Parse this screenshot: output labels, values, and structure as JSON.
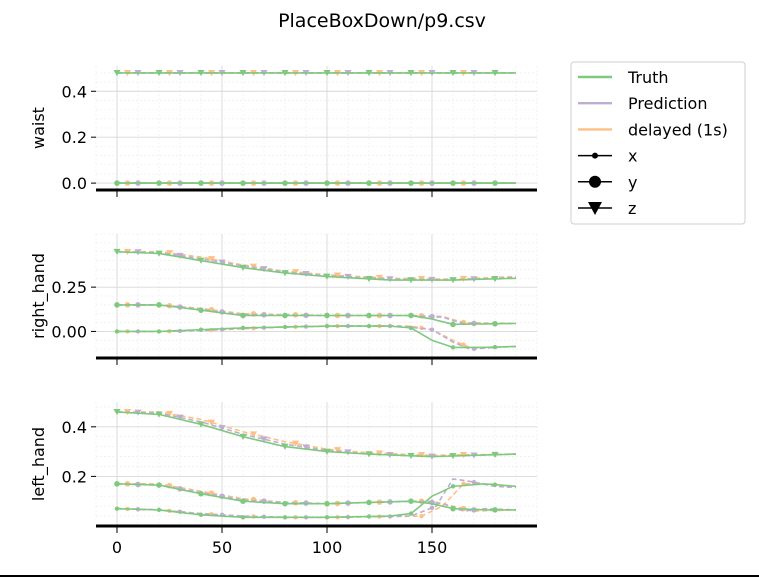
{
  "figure": {
    "title": "PlaceBoxDown/p9.csv"
  },
  "legend": {
    "placement": "right",
    "entries": [
      {
        "label": "Truth",
        "kind": "line",
        "color": "#7fc97f"
      },
      {
        "label": "Prediction",
        "kind": "line",
        "color": "#beaed4"
      },
      {
        "label": "delayed (1s)",
        "kind": "line",
        "color": "#fdc086"
      },
      {
        "label": "x",
        "kind": "marker",
        "marker": "small-dot"
      },
      {
        "label": "y",
        "kind": "marker",
        "marker": "big-dot"
      },
      {
        "label": "z",
        "kind": "marker",
        "marker": "triangle-down"
      }
    ]
  },
  "chart_data": [
    {
      "type": "line",
      "ylabel": "waist",
      "xlim": [
        -10,
        200
      ],
      "ylim": [
        -0.03,
        0.51
      ],
      "yticks": [
        0.0,
        0.2,
        0.4
      ],
      "ytick_labels": [
        "0.0",
        "0.2",
        "0.4"
      ],
      "xticks": [
        0,
        50,
        100,
        150
      ],
      "xtick_labels": [
        "",
        "",
        "",
        ""
      ],
      "grid": true,
      "series": [
        {
          "component": "x",
          "Truth": [
            [
              0,
              0.0
            ],
            [
              190,
              0.0
            ]
          ],
          "Prediction": [
            [
              0,
              0.0
            ],
            [
              190,
              0.0
            ]
          ],
          "delayed (1s)": [
            [
              0,
              0.0
            ],
            [
              190,
              0.0
            ]
          ]
        },
        {
          "component": "y",
          "Truth": [
            [
              0,
              0.0
            ],
            [
              190,
              0.0
            ]
          ],
          "Prediction": [
            [
              0,
              0.0
            ],
            [
              190,
              0.0
            ]
          ],
          "delayed (1s)": [
            [
              0,
              0.0
            ],
            [
              190,
              0.0
            ]
          ]
        },
        {
          "component": "z",
          "Truth": [
            [
              0,
              0.48
            ],
            [
              190,
              0.48
            ]
          ],
          "Prediction": [
            [
              0,
              0.48
            ],
            [
              190,
              0.48
            ]
          ],
          "delayed (1s)": [
            [
              0,
              0.48
            ],
            [
              190,
              0.48
            ]
          ]
        }
      ]
    },
    {
      "type": "line",
      "ylabel": "right_hand",
      "xlim": [
        -10,
        200
      ],
      "ylim": [
        -0.15,
        0.55
      ],
      "yticks": [
        0.0,
        0.25
      ],
      "ytick_labels": [
        "0.00",
        "0.25"
      ],
      "xticks": [
        0,
        50,
        100,
        150
      ],
      "xtick_labels": [
        "",
        "",
        "",
        ""
      ],
      "grid": true,
      "series": [
        {
          "component": "x",
          "Truth": [
            [
              0,
              0.0
            ],
            [
              20,
              0.0
            ],
            [
              40,
              0.01
            ],
            [
              60,
              0.02
            ],
            [
              80,
              0.025
            ],
            [
              100,
              0.03
            ],
            [
              130,
              0.03
            ],
            [
              140,
              0.02
            ],
            [
              150,
              -0.05
            ],
            [
              160,
              -0.09
            ],
            [
              175,
              -0.09
            ],
            [
              190,
              -0.085
            ]
          ],
          "Prediction": [
            [
              0,
              0.0
            ],
            [
              20,
              0.0
            ],
            [
              40,
              0.005
            ],
            [
              60,
              0.018
            ],
            [
              80,
              0.025
            ],
            [
              100,
              0.03
            ],
            [
              135,
              0.03
            ],
            [
              150,
              0.01
            ],
            [
              160,
              -0.06
            ],
            [
              168,
              -0.1
            ],
            [
              180,
              -0.09
            ],
            [
              190,
              -0.085
            ]
          ],
          "delayed (1s)": [
            [
              0,
              0.0
            ],
            [
              20,
              0.0
            ],
            [
              40,
              0.005
            ],
            [
              60,
              0.015
            ],
            [
              80,
              0.025
            ],
            [
              100,
              0.03
            ],
            [
              140,
              0.03
            ],
            [
              150,
              0.01
            ],
            [
              160,
              -0.05
            ],
            [
              168,
              -0.09
            ],
            [
              180,
              -0.09
            ],
            [
              190,
              -0.085
            ]
          ]
        },
        {
          "component": "y",
          "Truth": [
            [
              0,
              0.15
            ],
            [
              20,
              0.15
            ],
            [
              40,
              0.12
            ],
            [
              60,
              0.09
            ],
            [
              100,
              0.09
            ],
            [
              140,
              0.09
            ],
            [
              150,
              0.07
            ],
            [
              160,
              0.04
            ],
            [
              190,
              0.045
            ]
          ],
          "Prediction": [
            [
              0,
              0.15
            ],
            [
              20,
              0.15
            ],
            [
              40,
              0.125
            ],
            [
              60,
              0.095
            ],
            [
              100,
              0.09
            ],
            [
              140,
              0.09
            ],
            [
              155,
              0.08
            ],
            [
              165,
              0.045
            ],
            [
              190,
              0.045
            ]
          ],
          "delayed (1s)": [
            [
              0,
              0.15
            ],
            [
              20,
              0.15
            ],
            [
              40,
              0.13
            ],
            [
              60,
              0.1
            ],
            [
              100,
              0.09
            ],
            [
              140,
              0.09
            ],
            [
              155,
              0.085
            ],
            [
              165,
              0.05
            ],
            [
              190,
              0.045
            ]
          ]
        },
        {
          "component": "z",
          "Truth": [
            [
              0,
              0.45
            ],
            [
              20,
              0.44
            ],
            [
              40,
              0.4
            ],
            [
              60,
              0.36
            ],
            [
              80,
              0.33
            ],
            [
              100,
              0.31
            ],
            [
              130,
              0.29
            ],
            [
              160,
              0.29
            ],
            [
              190,
              0.3
            ]
          ],
          "Prediction": [
            [
              0,
              0.45
            ],
            [
              20,
              0.445
            ],
            [
              40,
              0.41
            ],
            [
              60,
              0.37
            ],
            [
              80,
              0.335
            ],
            [
              100,
              0.315
            ],
            [
              130,
              0.295
            ],
            [
              160,
              0.29
            ],
            [
              190,
              0.305
            ]
          ],
          "delayed (1s)": [
            [
              0,
              0.45
            ],
            [
              20,
              0.45
            ],
            [
              40,
              0.42
            ],
            [
              60,
              0.375
            ],
            [
              80,
              0.34
            ],
            [
              100,
              0.32
            ],
            [
              130,
              0.3
            ],
            [
              160,
              0.295
            ],
            [
              190,
              0.31
            ]
          ]
        }
      ]
    },
    {
      "type": "line",
      "ylabel": "left_hand",
      "xlim": [
        -10,
        200
      ],
      "ylim": [
        0.0,
        0.5
      ],
      "yticks": [
        0.2,
        0.4
      ],
      "ytick_labels": [
        "0.2",
        "0.4"
      ],
      "xticks": [
        0,
        50,
        100,
        150
      ],
      "xtick_labels": [
        "0",
        "50",
        "100",
        "150"
      ],
      "grid": true,
      "series": [
        {
          "component": "x",
          "Truth": [
            [
              0,
              0.07
            ],
            [
              20,
              0.065
            ],
            [
              40,
              0.045
            ],
            [
              60,
              0.035
            ],
            [
              80,
              0.035
            ],
            [
              100,
              0.035
            ],
            [
              130,
              0.04
            ],
            [
              140,
              0.05
            ],
            [
              150,
              0.12
            ],
            [
              160,
              0.16
            ],
            [
              175,
              0.17
            ],
            [
              190,
              0.16
            ]
          ],
          "Prediction": [
            [
              0,
              0.07
            ],
            [
              20,
              0.065
            ],
            [
              40,
              0.05
            ],
            [
              60,
              0.04
            ],
            [
              80,
              0.035
            ],
            [
              100,
              0.035
            ],
            [
              140,
              0.04
            ],
            [
              152,
              0.08
            ],
            [
              160,
              0.19
            ],
            [
              168,
              0.18
            ],
            [
              180,
              0.16
            ],
            [
              190,
              0.155
            ]
          ],
          "delayed (1s)": [
            [
              0,
              0.07
            ],
            [
              20,
              0.065
            ],
            [
              40,
              0.05
            ],
            [
              60,
              0.04
            ],
            [
              80,
              0.035
            ],
            [
              100,
              0.035
            ],
            [
              145,
              0.04
            ],
            [
              155,
              0.08
            ],
            [
              165,
              0.17
            ],
            [
              175,
              0.17
            ],
            [
              190,
              0.16
            ]
          ]
        },
        {
          "component": "y",
          "Truth": [
            [
              0,
              0.17
            ],
            [
              20,
              0.165
            ],
            [
              40,
              0.13
            ],
            [
              60,
              0.1
            ],
            [
              80,
              0.09
            ],
            [
              100,
              0.09
            ],
            [
              120,
              0.095
            ],
            [
              140,
              0.1
            ],
            [
              150,
              0.09
            ],
            [
              160,
              0.07
            ],
            [
              175,
              0.065
            ],
            [
              190,
              0.065
            ]
          ],
          "Prediction": [
            [
              0,
              0.17
            ],
            [
              20,
              0.165
            ],
            [
              40,
              0.135
            ],
            [
              60,
              0.105
            ],
            [
              80,
              0.095
            ],
            [
              100,
              0.09
            ],
            [
              120,
              0.095
            ],
            [
              145,
              0.1
            ],
            [
              155,
              0.09
            ],
            [
              165,
              0.06
            ],
            [
              175,
              0.07
            ],
            [
              190,
              0.065
            ]
          ],
          "delayed (1s)": [
            [
              0,
              0.17
            ],
            [
              20,
              0.17
            ],
            [
              40,
              0.14
            ],
            [
              60,
              0.11
            ],
            [
              80,
              0.095
            ],
            [
              100,
              0.09
            ],
            [
              140,
              0.1
            ],
            [
              150,
              0.1
            ],
            [
              160,
              0.08
            ],
            [
              170,
              0.06
            ],
            [
              190,
              0.065
            ]
          ]
        },
        {
          "component": "z",
          "Truth": [
            [
              0,
              0.46
            ],
            [
              20,
              0.45
            ],
            [
              40,
              0.41
            ],
            [
              60,
              0.36
            ],
            [
              80,
              0.32
            ],
            [
              100,
              0.3
            ],
            [
              120,
              0.29
            ],
            [
              150,
              0.28
            ],
            [
              190,
              0.29
            ]
          ],
          "Prediction": [
            [
              0,
              0.46
            ],
            [
              20,
              0.455
            ],
            [
              40,
              0.42
            ],
            [
              60,
              0.37
            ],
            [
              80,
              0.33
            ],
            [
              100,
              0.305
            ],
            [
              120,
              0.29
            ],
            [
              150,
              0.28
            ],
            [
              190,
              0.29
            ]
          ],
          "delayed (1s)": [
            [
              0,
              0.46
            ],
            [
              20,
              0.46
            ],
            [
              40,
              0.43
            ],
            [
              60,
              0.38
            ],
            [
              80,
              0.34
            ],
            [
              100,
              0.31
            ],
            [
              120,
              0.295
            ],
            [
              150,
              0.285
            ],
            [
              190,
              0.29
            ]
          ]
        }
      ]
    }
  ]
}
